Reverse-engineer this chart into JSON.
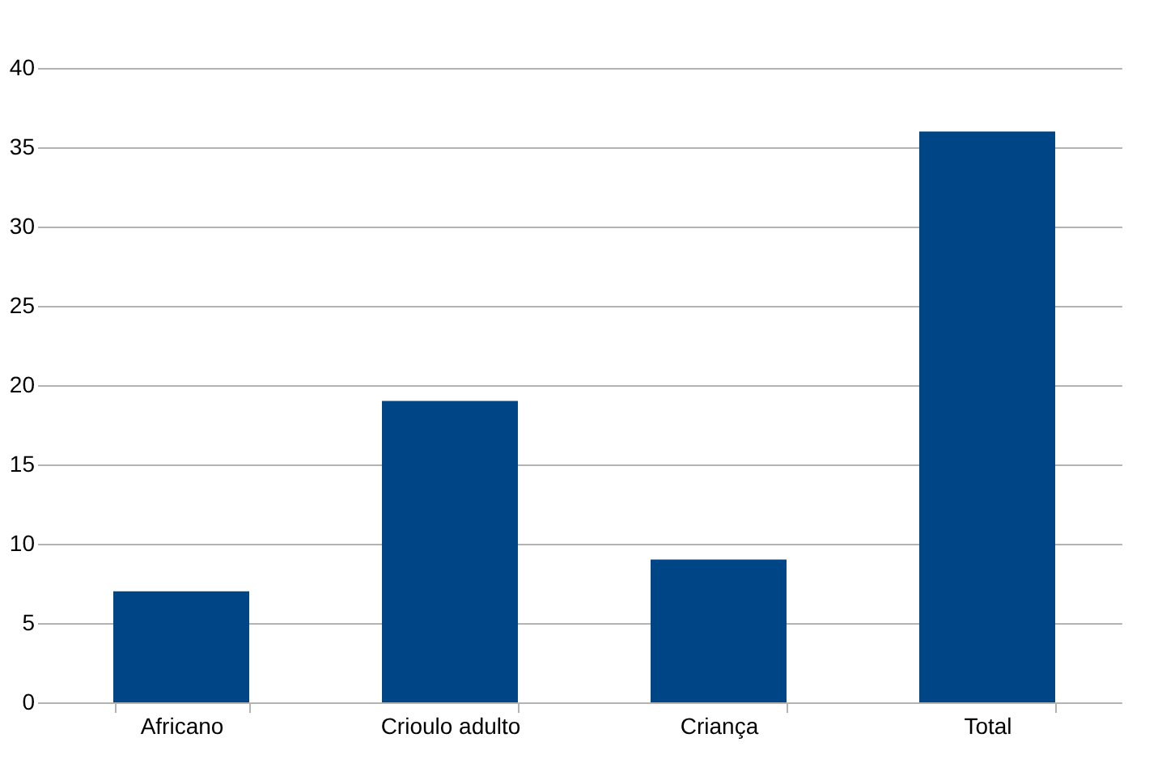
{
  "chart_data": {
    "type": "bar",
    "categories": [
      "Africano",
      "Crioulo adulto",
      "Criança",
      "Total"
    ],
    "values": [
      7,
      19,
      9,
      36
    ],
    "color": "#004586",
    "ylim": [
      0,
      40
    ],
    "yticks": [
      0,
      5,
      10,
      15,
      20,
      25,
      30,
      35,
      40
    ],
    "grid": "y"
  }
}
